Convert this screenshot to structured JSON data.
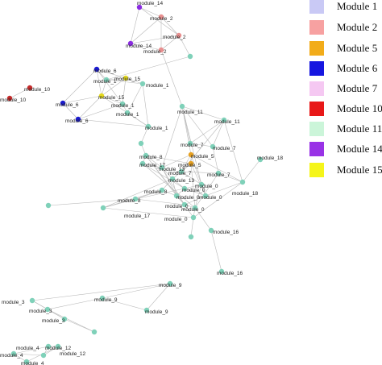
{
  "legend": [
    {
      "label": "Module 1",
      "color": "#c9c9f5"
    },
    {
      "label": "Module 2",
      "color": "#f7a1a1"
    },
    {
      "label": "Module 5",
      "color": "#f2ac1a"
    },
    {
      "label": "Module 6",
      "color": "#1616e0"
    },
    {
      "label": "Module 7",
      "color": "#f5c8f2"
    },
    {
      "label": "Module 10",
      "color": "#e81818"
    },
    {
      "label": "Module 11",
      "color": "#cbf5d9"
    },
    {
      "label": "Module 14",
      "color": "#9933e6"
    },
    {
      "label": "Module 15",
      "color": "#f5f51a"
    }
  ],
  "colors": {
    "module_2": "#e88f8f",
    "module_5": "#e6a020",
    "module_6": "#1a1ad0",
    "module_10": "#c42a2a",
    "module_14": "#8a2be2",
    "module_15": "#e3d81c",
    "other": "#7fd1b9",
    "edge": "#b9b9b9"
  },
  "nodes": [
    {
      "id": "n14a",
      "label": "module_14",
      "color": "module_14"
    },
    {
      "id": "n2a",
      "label": "module_2",
      "color": "module_2"
    },
    {
      "id": "n14b",
      "label": "module_14",
      "color": "module_14"
    },
    {
      "id": "n2b",
      "label": "module_2",
      "color": "module_2"
    },
    {
      "id": "n2c",
      "label": "module_2",
      "color": "module_2"
    },
    {
      "id": "nLone1",
      "label": "",
      "color": "other"
    },
    {
      "id": "n6a",
      "label": "module_6",
      "color": "module_6"
    },
    {
      "id": "n1a",
      "label": "module_1",
      "color": "other"
    },
    {
      "id": "n15a",
      "label": "module_15",
      "color": "module_15"
    },
    {
      "id": "n1b",
      "label": "module_1",
      "color": "other"
    },
    {
      "id": "n10a",
      "label": "module_10",
      "color": "module_10"
    },
    {
      "id": "n10b",
      "label": "module_10",
      "color": "module_10"
    },
    {
      "id": "n6b",
      "label": "module_6",
      "color": "module_6"
    },
    {
      "id": "n15b",
      "label": "module_15",
      "color": "module_15"
    },
    {
      "id": "n1c",
      "label": "module_1",
      "color": "other"
    },
    {
      "id": "n6c",
      "label": "module_6",
      "color": "module_6"
    },
    {
      "id": "n1d",
      "label": "module_1",
      "color": "other"
    },
    {
      "id": "n1e",
      "label": "module_1",
      "color": "other"
    },
    {
      "id": "nLone2",
      "label": "",
      "color": "other"
    },
    {
      "id": "n11a",
      "label": "module_11",
      "color": "other"
    },
    {
      "id": "n11b",
      "label": "module_11",
      "color": "other"
    },
    {
      "id": "n7a",
      "label": "module_7",
      "color": "other"
    },
    {
      "id": "n7b",
      "label": "module_7",
      "color": "other"
    },
    {
      "id": "n18a",
      "label": "module_18",
      "color": "other"
    },
    {
      "id": "n8a",
      "label": "module_8",
      "color": "other"
    },
    {
      "id": "n5a",
      "label": "module_5",
      "color": "module_5"
    },
    {
      "id": "n17a",
      "label": "module_17",
      "color": "other"
    },
    {
      "id": "n13a",
      "label": "module_13",
      "color": "other"
    },
    {
      "id": "n5b",
      "label": "module_5",
      "color": "module_5"
    },
    {
      "id": "n7c",
      "label": "module_7",
      "color": "other"
    },
    {
      "id": "n7d",
      "label": "module_7",
      "color": "other"
    },
    {
      "id": "n8b",
      "label": "module_8",
      "color": "other"
    },
    {
      "id": "n13b",
      "label": "module_13",
      "color": "other"
    },
    {
      "id": "n0a",
      "label": "module_0",
      "color": "other"
    },
    {
      "id": "n0b",
      "label": "module_0",
      "color": "other"
    },
    {
      "id": "n0c",
      "label": "module_0",
      "color": "other"
    },
    {
      "id": "n0d",
      "label": "module_0",
      "color": "other"
    },
    {
      "id": "n18b",
      "label": "module_18",
      "color": "other"
    },
    {
      "id": "n8c",
      "label": "module_8",
      "color": "other"
    },
    {
      "id": "n0e",
      "label": "module_0",
      "color": "other"
    },
    {
      "id": "n0f",
      "label": "module_0",
      "color": "other"
    },
    {
      "id": "nLone3",
      "label": "",
      "color": "other"
    },
    {
      "id": "n17b",
      "label": "module_17",
      "color": "other"
    },
    {
      "id": "n0g",
      "label": "module_0",
      "color": "other"
    },
    {
      "id": "n16a",
      "label": "module_16",
      "color": "other"
    },
    {
      "id": "n16b",
      "label": "module_16",
      "color": "other"
    },
    {
      "id": "nLone4",
      "label": "",
      "color": "other"
    },
    {
      "id": "n9a",
      "label": "module_9",
      "color": "other"
    },
    {
      "id": "n9b",
      "label": "module_9",
      "color": "other"
    },
    {
      "id": "n9c",
      "label": "module_9",
      "color": "other"
    },
    {
      "id": "n3a",
      "label": "module_3",
      "color": "other"
    },
    {
      "id": "n3b",
      "label": "module_3",
      "color": "other"
    },
    {
      "id": "n3c",
      "label": "module_3",
      "color": "other"
    },
    {
      "id": "nLone5",
      "label": "",
      "color": "other"
    },
    {
      "id": "n4a",
      "label": "module_4",
      "color": "other"
    },
    {
      "id": "n12a",
      "label": "module_12",
      "color": "other"
    },
    {
      "id": "n4b",
      "label": "module_4",
      "color": "other"
    },
    {
      "id": "n12b",
      "label": "module_12",
      "color": "other"
    },
    {
      "id": "n4c",
      "label": "module_4",
      "color": "other"
    }
  ],
  "edges": [
    [
      "n14a",
      "n2a"
    ],
    [
      "n14a",
      "n14b"
    ],
    [
      "n14a",
      "n2b"
    ],
    [
      "n2a",
      "n14b"
    ],
    [
      "n2a",
      "n2b"
    ],
    [
      "n2a",
      "n2c"
    ],
    [
      "n14b",
      "n2b"
    ],
    [
      "n14b",
      "n2c"
    ],
    [
      "n2b",
      "n2c"
    ],
    [
      "n2b",
      "nLone1"
    ],
    [
      "n2c",
      "n11a"
    ],
    [
      "n6a",
      "n1a"
    ],
    [
      "n6a",
      "n15a"
    ],
    [
      "n6a",
      "n15b"
    ],
    [
      "n6a",
      "n1c"
    ],
    [
      "n6a",
      "n6b"
    ],
    [
      "n1a",
      "n15a"
    ],
    [
      "n1a",
      "n1b"
    ],
    [
      "n1a",
      "n15b"
    ],
    [
      "n15a",
      "n1b"
    ],
    [
      "n15a",
      "n15b"
    ],
    [
      "n15a",
      "n1c"
    ],
    [
      "n1b",
      "n1d"
    ],
    [
      "n1b",
      "n1e"
    ],
    [
      "n15b",
      "n1c"
    ],
    [
      "n15b",
      "n1e"
    ],
    [
      "n1c",
      "n1d"
    ],
    [
      "n1d",
      "n1e"
    ],
    [
      "n6b",
      "n6c"
    ],
    [
      "n6b",
      "n15b"
    ],
    [
      "n6c",
      "n15b"
    ],
    [
      "n6c",
      "n1e"
    ],
    [
      "n10a",
      "n10b"
    ],
    [
      "n6c",
      "n1c"
    ],
    [
      "n1e",
      "nLone2"
    ],
    [
      "n1a",
      "nLone1"
    ],
    [
      "n11a",
      "n11b"
    ],
    [
      "n11a",
      "n7a"
    ],
    [
      "n11a",
      "n7b"
    ],
    [
      "n11b",
      "n7a"
    ],
    [
      "n11b",
      "n7b"
    ],
    [
      "n7a",
      "n7b"
    ],
    [
      "n11a",
      "n5a"
    ],
    [
      "n11b",
      "n18b"
    ],
    [
      "n11a",
      "n0c"
    ],
    [
      "n11b",
      "n7c"
    ],
    [
      "n18a",
      "n18b"
    ],
    [
      "n7b",
      "n7d"
    ],
    [
      "n11a",
      "n13a"
    ],
    [
      "n8a",
      "n17a"
    ],
    [
      "n8a",
      "n13a"
    ],
    [
      "n8a",
      "n0a"
    ],
    [
      "n8a",
      "n5b"
    ],
    [
      "n17a",
      "n13a"
    ],
    [
      "n17a",
      "n0b"
    ],
    [
      "n13a",
      "n5a"
    ],
    [
      "n13a",
      "n0a"
    ],
    [
      "n13a",
      "n13b"
    ],
    [
      "n5a",
      "n5b"
    ],
    [
      "n5a",
      "n7c"
    ],
    [
      "n5a",
      "n0c"
    ],
    [
      "n5b",
      "n7c"
    ],
    [
      "n5b",
      "n0d"
    ],
    [
      "n5b",
      "n13b"
    ],
    [
      "n7c",
      "n0c"
    ],
    [
      "n7c",
      "n7d"
    ],
    [
      "n7d",
      "n18b"
    ],
    [
      "n7d",
      "n0f"
    ],
    [
      "n8b",
      "n13b"
    ],
    [
      "n8b",
      "n0a"
    ],
    [
      "n8b",
      "n8c"
    ],
    [
      "n8b",
      "n17b"
    ],
    [
      "n13b",
      "n0a"
    ],
    [
      "n13b",
      "n0b"
    ],
    [
      "n0a",
      "n0b"
    ],
    [
      "n0a",
      "n0e"
    ],
    [
      "n0b",
      "n0c"
    ],
    [
      "n0b",
      "n0d"
    ],
    [
      "n0c",
      "n0d"
    ],
    [
      "n0c",
      "n0f"
    ],
    [
      "n0d",
      "n18b"
    ],
    [
      "n0d",
      "n0e"
    ],
    [
      "n0e",
      "n0f"
    ],
    [
      "n0e",
      "n0g"
    ],
    [
      "n0f",
      "n0g"
    ],
    [
      "n0f",
      "n16a"
    ],
    [
      "n0g",
      "nLone4"
    ],
    [
      "n16a",
      "n16b"
    ],
    [
      "n8c",
      "n17b"
    ],
    [
      "n8c",
      "nLone3"
    ],
    [
      "n17b",
      "n0g"
    ],
    [
      "n0b",
      "n8c"
    ],
    [
      "n0g",
      "n18b"
    ],
    [
      "n5a",
      "n18b"
    ],
    [
      "n8a",
      "n0e"
    ],
    [
      "n17a",
      "n0f"
    ],
    [
      "n13a",
      "n0e"
    ],
    [
      "n5b",
      "n0f"
    ],
    [
      "nLone2",
      "n8a"
    ],
    [
      "n17b",
      "n13b"
    ],
    [
      "n8c",
      "n0e"
    ],
    [
      "n9a",
      "n9b"
    ],
    [
      "n9a",
      "n9c"
    ],
    [
      "n9b",
      "n9c"
    ],
    [
      "n3a",
      "n3b"
    ],
    [
      "n3a",
      "n3c"
    ],
    [
      "n3b",
      "n3c"
    ],
    [
      "n3b",
      "nLone5"
    ],
    [
      "n3c",
      "nLone5"
    ],
    [
      "n3a",
      "n9a"
    ],
    [
      "n3b",
      "n9b"
    ],
    [
      "n4a",
      "n12a"
    ],
    [
      "n4a",
      "n4b"
    ],
    [
      "n4a",
      "n12b"
    ],
    [
      "n4b",
      "n12b"
    ],
    [
      "n12a",
      "n12b"
    ],
    [
      "n4b",
      "n4c"
    ],
    [
      "n12a",
      "n4c"
    ]
  ]
}
